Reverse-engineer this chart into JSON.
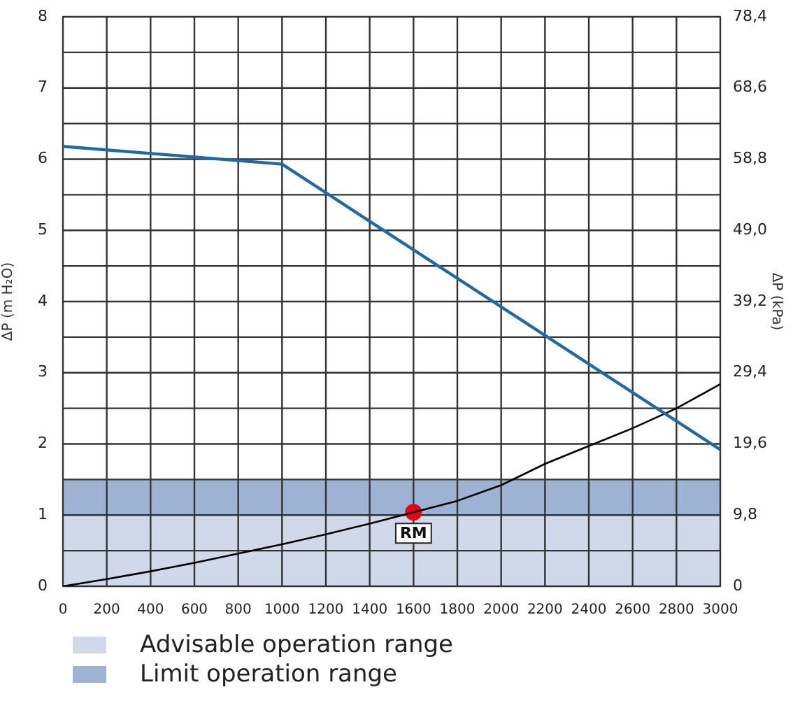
{
  "chart_data": {
    "type": "line",
    "ylabel": "ΔP (m H₂O)",
    "y2label": "ΔP (kPa)",
    "xlim": [
      0,
      3000
    ],
    "xticks": [
      0,
      200,
      400,
      600,
      800,
      1000,
      1200,
      1400,
      1600,
      1800,
      2000,
      2200,
      2400,
      2600,
      2800,
      3000
    ],
    "ylim": [
      0,
      8
    ],
    "yticks": [
      0,
      {
        "value": 0.5,
        "label": null
      },
      1,
      {
        "value": 1.5,
        "label": null
      },
      2,
      {
        "value": 2.5,
        "label": null
      },
      3,
      {
        "value": 3.5,
        "label": null
      },
      4,
      {
        "value": 4.5,
        "label": null
      },
      5,
      {
        "value": 5.5,
        "label": null
      },
      6,
      {
        "value": 6.5,
        "label": null
      },
      7,
      {
        "value": 7.5,
        "label": null
      },
      8
    ],
    "y2lim": [
      0,
      78.4
    ],
    "y2ticks": [
      0,
      {
        "value": 4.9,
        "label": null
      },
      {
        "value": 9.8,
        "label": "9,8"
      },
      {
        "value": 14.7,
        "label": null
      },
      {
        "value": 19.6,
        "label": "19,6"
      },
      {
        "value": 24.5,
        "label": null
      },
      {
        "value": 29.4,
        "label": "29,4"
      },
      {
        "value": 34.3,
        "label": null
      },
      {
        "value": 39.2,
        "label": "39,2"
      },
      {
        "value": 44.1,
        "label": null
      },
      {
        "value": 49.0,
        "label": "49,0"
      },
      {
        "value": 53.9,
        "label": null
      },
      {
        "value": 58.8,
        "label": "58,8"
      },
      {
        "value": 63.7,
        "label": null
      },
      {
        "value": 68.6,
        "label": "68,6"
      },
      {
        "value": 73.5,
        "label": null
      },
      {
        "value": 78.4,
        "label": "78,4"
      }
    ],
    "grid": true,
    "legend": "bottom",
    "series": [
      {
        "color": "#1f6aa5",
        "x": [
          0,
          1000,
          3000
        ],
        "values": [
          6.18,
          5.93,
          1.92
        ]
      },
      {
        "color": "#000000",
        "x": [
          0,
          200,
          400,
          600,
          800,
          1000,
          1200,
          1400,
          1600,
          1800,
          2000,
          2200,
          2400,
          2600,
          2800,
          3000
        ],
        "values": [
          0,
          0.1,
          0.21,
          0.33,
          0.46,
          0.59,
          0.73,
          0.88,
          1.04,
          1.2,
          1.42,
          1.72,
          1.97,
          2.22,
          2.5,
          2.84
        ]
      },
      {
        "type": "scatter",
        "color": "#e30613",
        "marker": "circle",
        "x": [
          1600
        ],
        "values": [
          1.04
        ]
      }
    ],
    "bands": [
      {
        "axis": "y",
        "from": 0,
        "to": 1,
        "label": "Advisable operation range",
        "color": "#cfd9ea"
      },
      {
        "axis": "y",
        "from": 1,
        "to": 1.5,
        "label": "Limit operation range",
        "color": "#9db3d4"
      }
    ],
    "annotations": [
      {
        "text": "RM",
        "x": 1600,
        "y": 1.04
      }
    ]
  }
}
